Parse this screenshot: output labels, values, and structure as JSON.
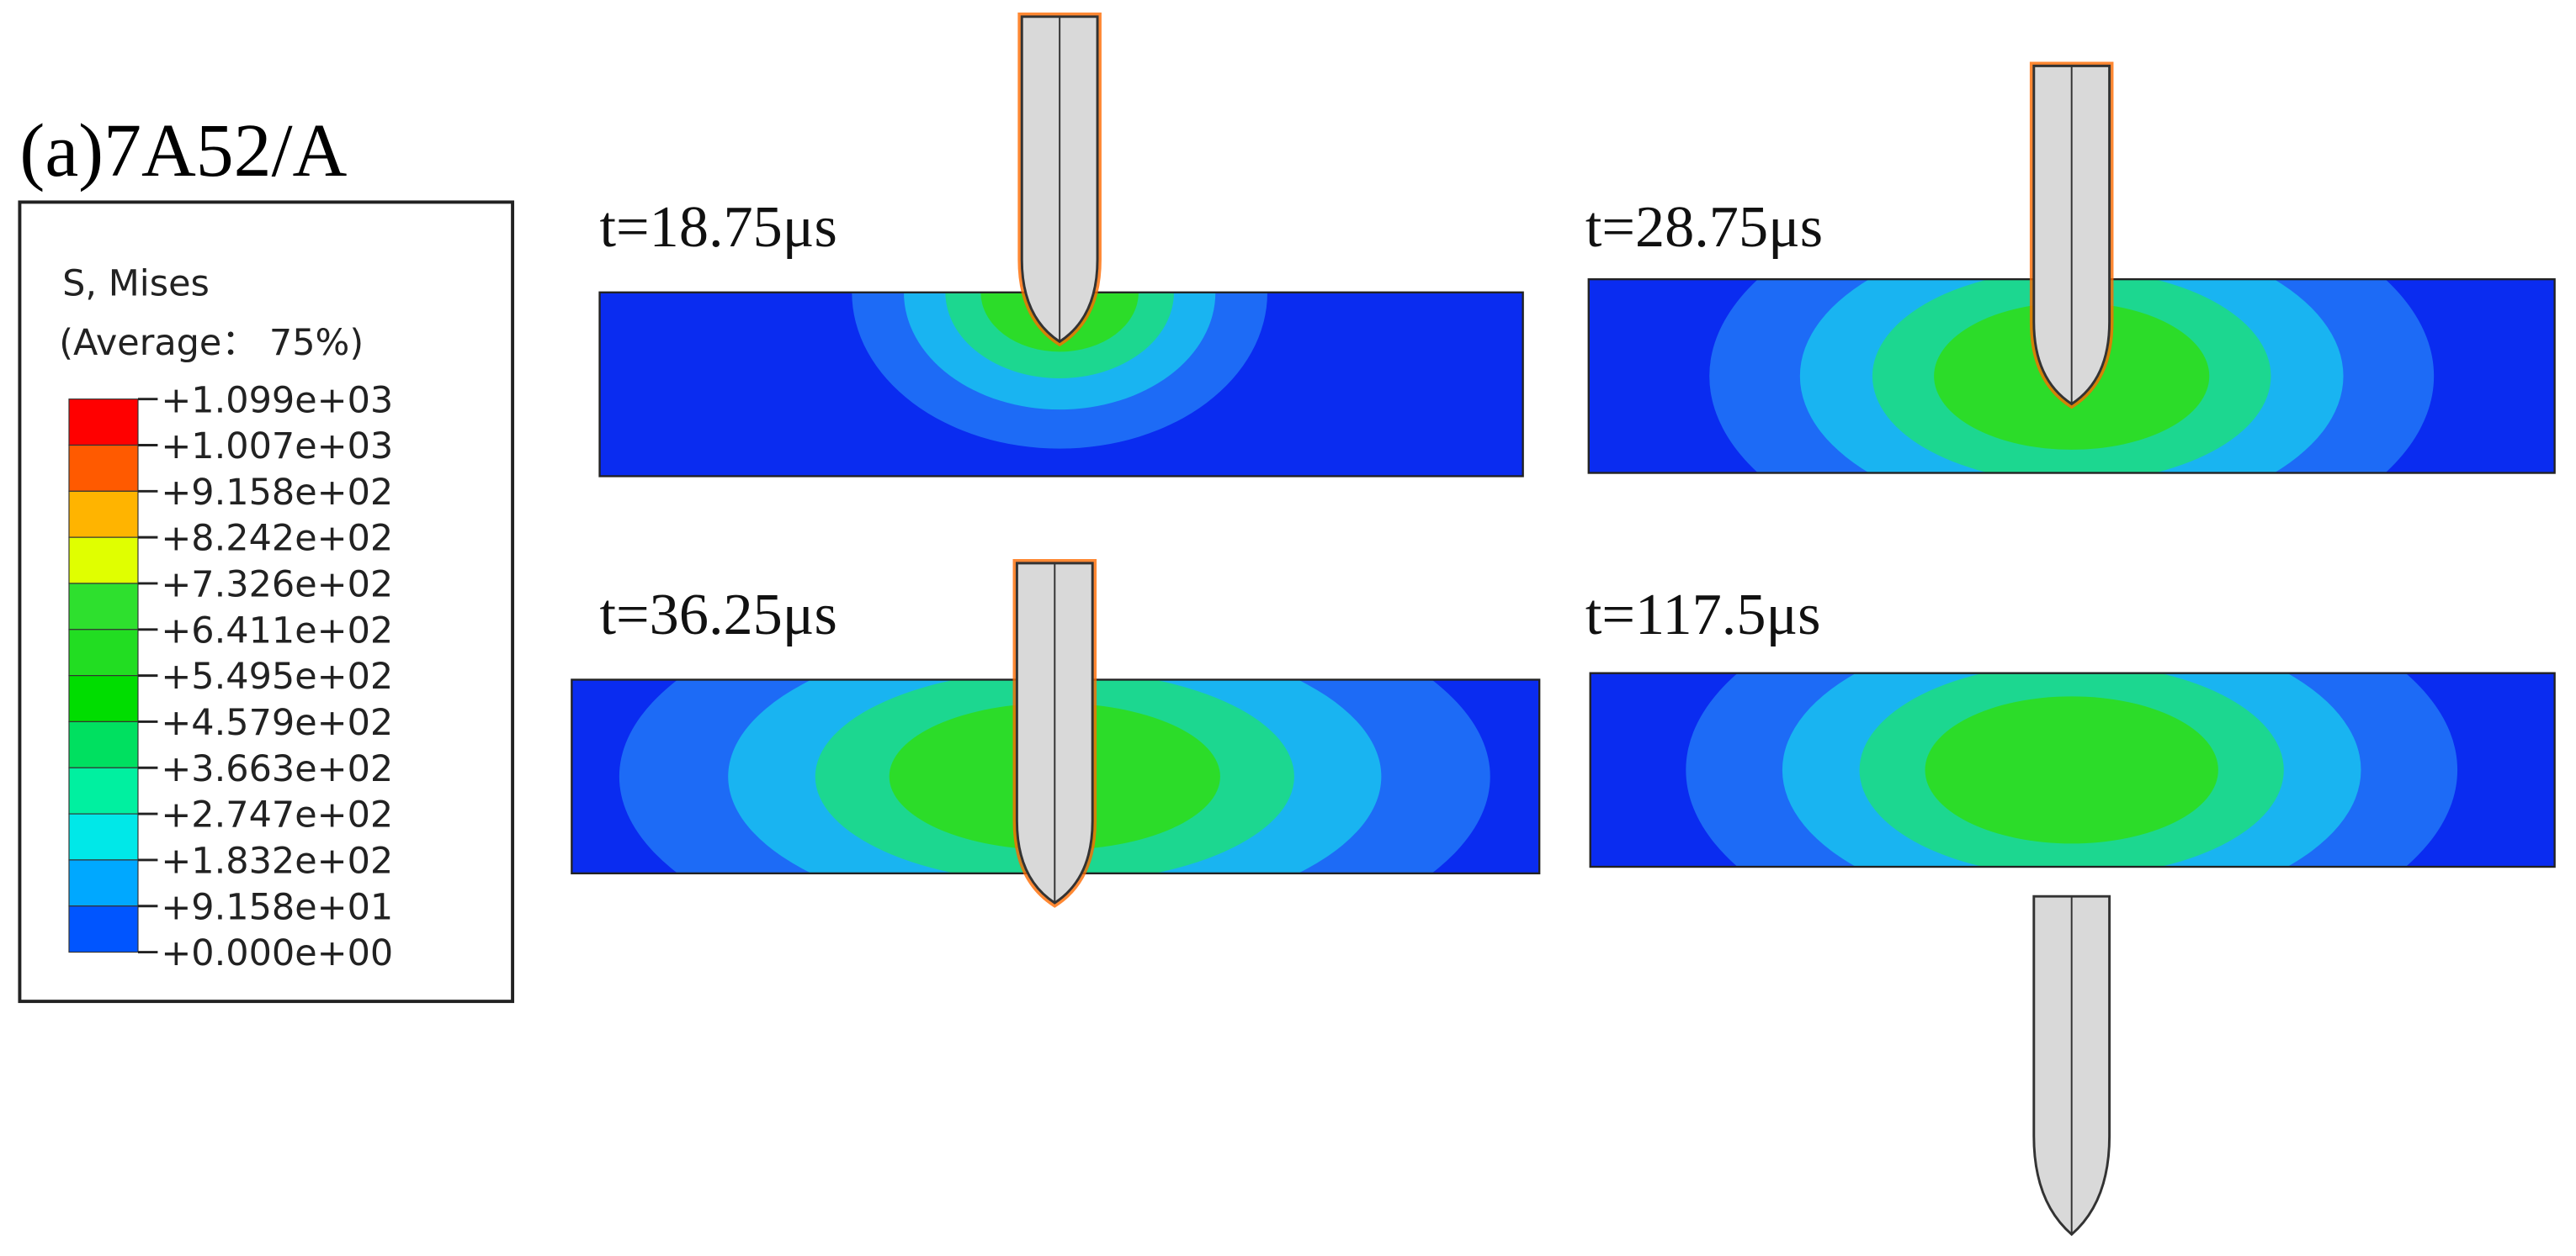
{
  "title": "(a)7A52/A",
  "legend": {
    "title": "S, Mises",
    "subtitle": "(Average： 75%)",
    "labels": [
      "+1.099e+03",
      "+1.007e+03",
      "+9.158e+02",
      "+8.242e+02",
      "+7.326e+02",
      "+6.411e+02",
      "+5.495e+02",
      "+4.579e+02",
      "+3.663e+02",
      "+2.747e+02",
      "+1.832e+02",
      "+9.158e+01",
      "+0.000e+00"
    ]
  },
  "panels": [
    {
      "label": "t=18.75μs"
    },
    {
      "label": "t=28.75μs"
    },
    {
      "label": "t=36.25μs"
    },
    {
      "label": "t=117.5μs"
    }
  ]
}
